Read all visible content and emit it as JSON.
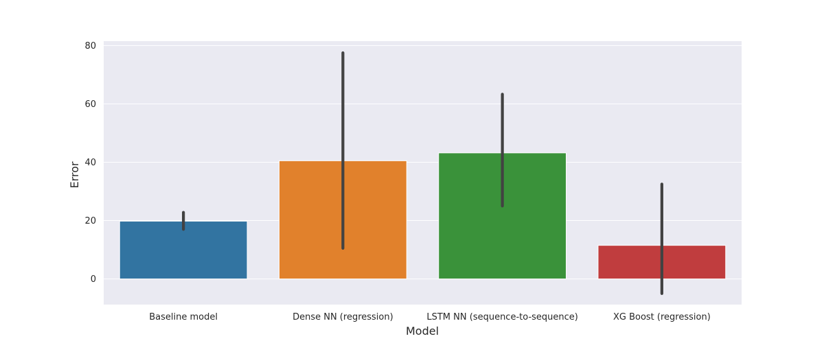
{
  "chart_data": {
    "type": "bar",
    "title": "",
    "xlabel": "Model",
    "ylabel": "Error",
    "categories": [
      "Baseline model",
      "Dense NN (regression)",
      "LSTM NN (sequence-to-sequence)",
      "XG Boost (regression)"
    ],
    "values": [
      19.8,
      40.5,
      43.2,
      11.5
    ],
    "error_low": [
      17.0,
      10.5,
      25.0,
      -5.0
    ],
    "error_high": [
      22.8,
      77.5,
      63.3,
      32.5
    ],
    "colors": [
      "#3274a1",
      "#e1812c",
      "#3a923a",
      "#c03d3e"
    ],
    "ylim": [
      -8.8,
      81.5
    ],
    "yticks": [
      0,
      20,
      40,
      60,
      80
    ],
    "ytick_labels": [
      "0",
      "20",
      "40",
      "60",
      "80"
    ],
    "grid": true,
    "background": "#eaeaf2",
    "grid_color": "#ffffff",
    "errorbar_color": "#424242"
  }
}
